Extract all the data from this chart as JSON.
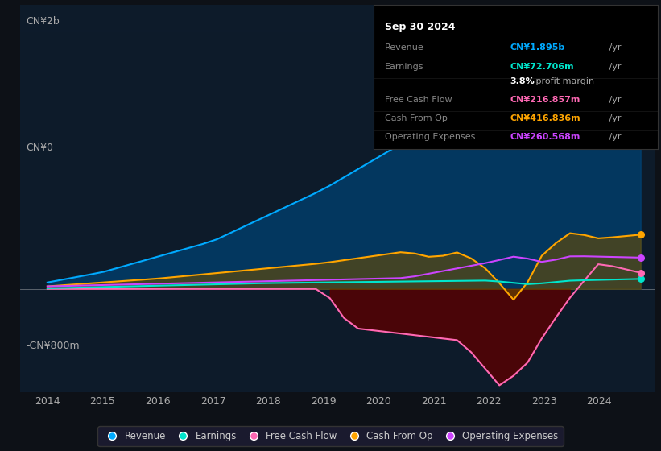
{
  "bg_color": "#0d1117",
  "plot_bg_color": "#0d1b2a",
  "title_box": {
    "date": "Sep 30 2024",
    "rows": [
      {
        "label": "Revenue",
        "value": "CN¥1.895b /yr",
        "value_color": "#00aaff"
      },
      {
        "label": "Earnings",
        "value": "CN¥72.706m /yr",
        "value_color": "#00e5cc"
      },
      {
        "label": "",
        "value": "3.8% profit margin",
        "value_color": "#ffffff",
        "bold_part": "3.8%"
      },
      {
        "label": "Free Cash Flow",
        "value": "CN¥216.857m /yr",
        "value_color": "#ff69b4"
      },
      {
        "label": "Cash From Op",
        "value": "CN¥416.836m /yr",
        "value_color": "#ffa500"
      },
      {
        "label": "Operating Expenses",
        "value": "CN¥260.568m /yr",
        "value_color": "#cc44ff"
      }
    ]
  },
  "ylabel_top": "CN¥2b",
  "ylabel_zero": "CN¥0",
  "ylabel_bottom": "-CN¥800m",
  "xlabel_years": [
    "2014",
    "2015",
    "2016",
    "2017",
    "2018",
    "2019",
    "2020",
    "2021",
    "2022",
    "2023",
    "2024"
  ],
  "series": {
    "revenue": {
      "color": "#00aaff",
      "fill": true,
      "fill_color": "#00aaff",
      "fill_alpha": 0.3,
      "label": "Revenue",
      "dot_color": "#00aaff"
    },
    "earnings": {
      "color": "#00e5cc",
      "fill": false,
      "label": "Earnings",
      "dot_color": "#00e5cc"
    },
    "free_cash_flow": {
      "color": "#ff69b4",
      "fill": true,
      "fill_color": "#8b0000",
      "fill_alpha": 0.5,
      "label": "Free Cash Flow",
      "dot_color": "#ff69b4"
    },
    "cash_from_op": {
      "color": "#ffa500",
      "fill": true,
      "fill_color": "#8b6000",
      "fill_alpha": 0.5,
      "label": "Cash From Op",
      "dot_color": "#ffa500"
    },
    "operating_expenses": {
      "color": "#cc44ff",
      "fill": false,
      "label": "Operating Expenses",
      "dot_color": "#cc44ff"
    }
  },
  "ylim": [
    -800,
    2200
  ],
  "xlim": [
    2013.5,
    2025.0
  ],
  "gridline_color": "#1e2d3d",
  "gridline_y": [
    2000,
    0,
    -800
  ],
  "zero_line_color": "#aaaaaa"
}
